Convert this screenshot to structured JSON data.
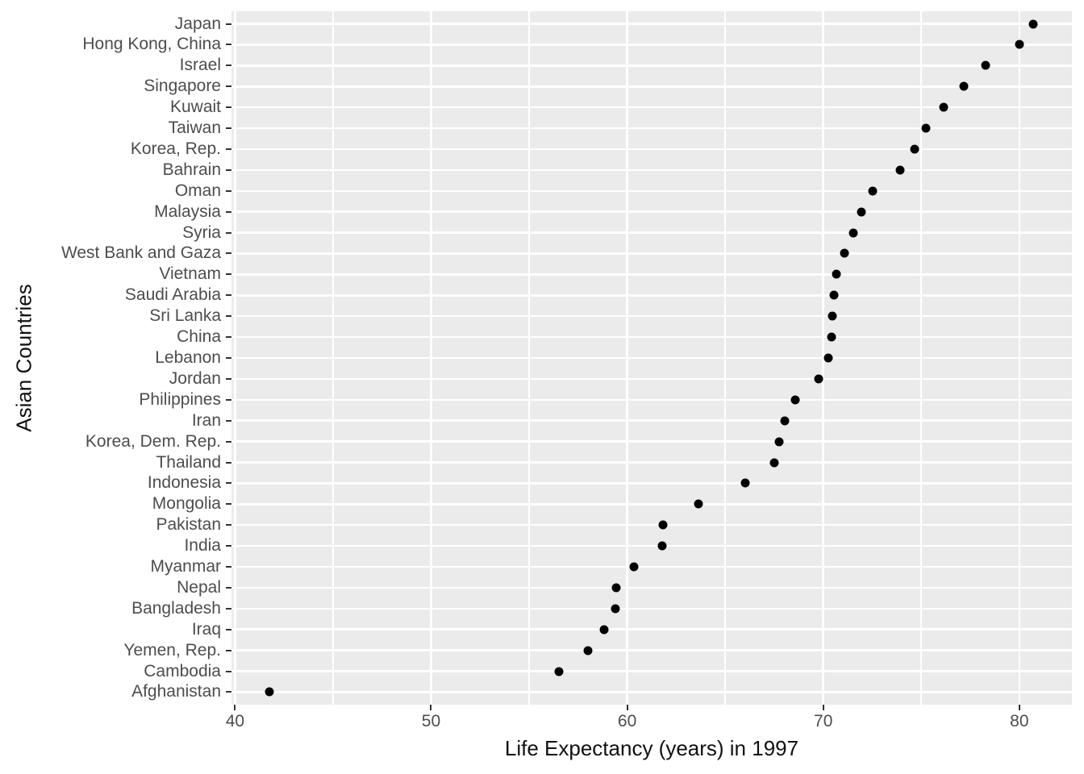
{
  "chart_data": {
    "type": "scatter",
    "title": "",
    "xlabel": "Life Expectancy (years) in 1997",
    "ylabel": "Asian Countries",
    "legend": "none",
    "grid": "white major gridlines per category row; vertical major and minor gridlines",
    "xlim": [
      39.82,
      82.68
    ],
    "x_ticks_major": [
      40,
      50,
      60,
      70,
      80
    ],
    "x_tick_labels": [
      "40",
      "50",
      "60",
      "70",
      "80"
    ],
    "x_ticks_minor": [
      45,
      55,
      65,
      75
    ],
    "categories": [
      "Japan",
      "Hong Kong, China",
      "Israel",
      "Singapore",
      "Kuwait",
      "Taiwan",
      "Korea, Rep.",
      "Bahrain",
      "Oman",
      "Malaysia",
      "Syria",
      "West Bank and Gaza",
      "Vietnam",
      "Saudi Arabia",
      "Sri Lanka",
      "China",
      "Lebanon",
      "Jordan",
      "Philippines",
      "Iran",
      "Korea, Dem. Rep.",
      "Thailand",
      "Indonesia",
      "Mongolia",
      "Pakistan",
      "India",
      "Myanmar",
      "Nepal",
      "Bangladesh",
      "Iraq",
      "Yemen, Rep.",
      "Cambodia",
      "Afghanistan"
    ],
    "values": [
      80.69,
      80.0,
      78.27,
      77.16,
      76.16,
      75.25,
      74.65,
      73.93,
      72.5,
      71.94,
      71.53,
      71.1,
      70.67,
      70.53,
      70.46,
      70.43,
      70.27,
      69.77,
      68.56,
      68.04,
      67.73,
      67.52,
      66.04,
      63.63,
      61.82,
      61.77,
      60.33,
      59.43,
      59.41,
      58.81,
      58.02,
      56.53,
      41.76
    ],
    "style": {
      "panel_bg": "#EBEBEB",
      "grid_color": "#FFFFFF",
      "point_color": "#000000",
      "tick_label_color": "#4D4D4D",
      "axis_title_color": "#111111",
      "tick_mark_color": "#333333",
      "figure_bg": "#FFFFFF"
    }
  }
}
